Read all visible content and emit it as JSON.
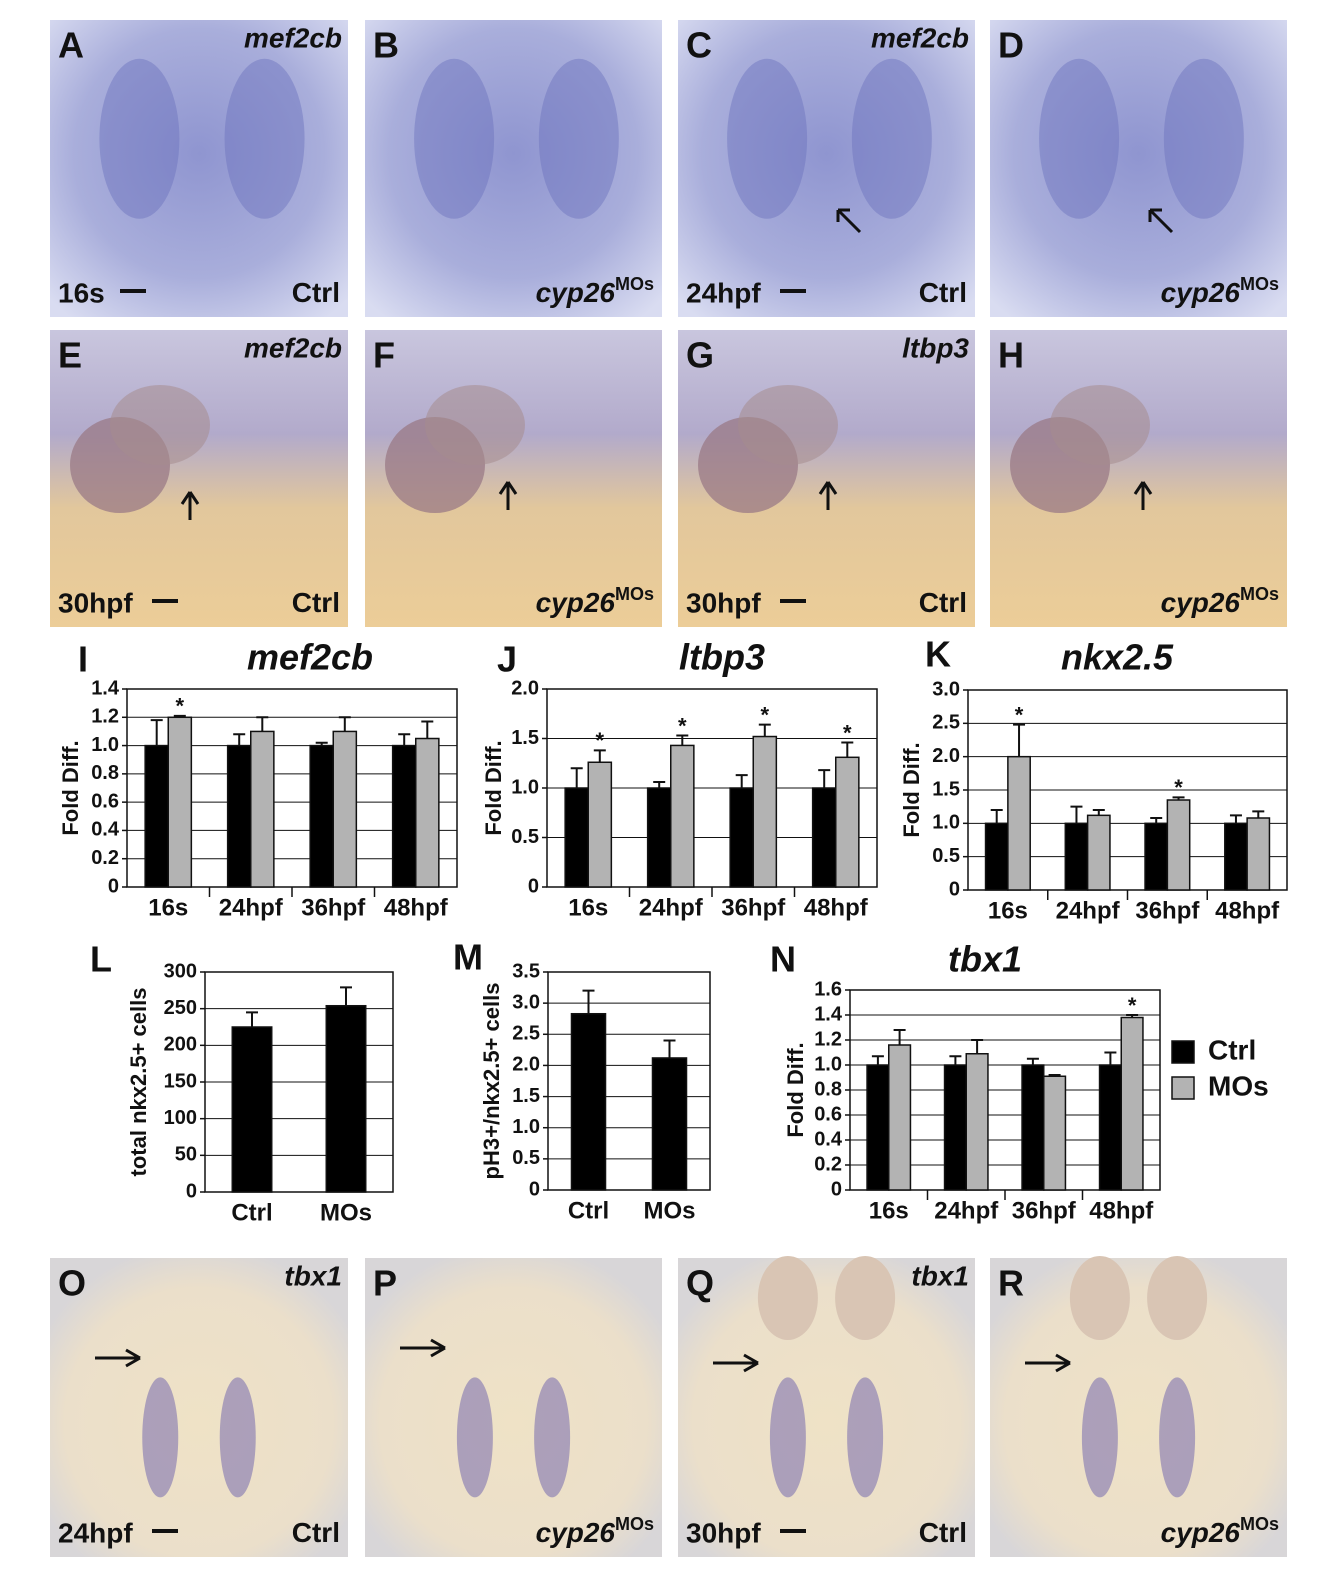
{
  "image_panels": [
    {
      "label": "A",
      "gene": "mef2cb",
      "stage": "16s",
      "condition": "Ctrl"
    },
    {
      "label": "B",
      "condition": "cyp26",
      "condition_sup": "MOs"
    },
    {
      "label": "C",
      "gene": "mef2cb",
      "stage": "24hpf",
      "condition": "Ctrl"
    },
    {
      "label": "D",
      "condition": "cyp26",
      "condition_sup": "MOs"
    },
    {
      "label": "E",
      "gene": "mef2cb",
      "stage": "30hpf",
      "condition": "Ctrl"
    },
    {
      "label": "F",
      "condition": "cyp26",
      "condition_sup": "MOs"
    },
    {
      "label": "G",
      "gene": "ltbp3",
      "stage": "30hpf",
      "condition": "Ctrl"
    },
    {
      "label": "H",
      "condition": "cyp26",
      "condition_sup": "MOs"
    },
    {
      "label": "O",
      "gene": "tbx1",
      "stage": "24hpf",
      "condition": "Ctrl"
    },
    {
      "label": "P",
      "condition": "cyp26",
      "condition_sup": "MOs"
    },
    {
      "label": "Q",
      "gene": "tbx1",
      "stage": "30hpf",
      "condition": "Ctrl"
    },
    {
      "label": "R",
      "condition": "cyp26",
      "condition_sup": "MOs"
    }
  ],
  "chart_data": [
    {
      "type": "bar",
      "panel": "I",
      "title": "mef2cb",
      "y_label": "Fold Diff.",
      "categories": [
        "16s",
        "24hpf",
        "36hpf",
        "48hpf"
      ],
      "series": [
        {
          "name": "Ctrl",
          "color": "#000000",
          "values": [
            1.0,
            1.0,
            1.0,
            1.0
          ],
          "errors": [
            0.18,
            0.08,
            0.02,
            0.08
          ]
        },
        {
          "name": "MOs",
          "color": "#b3b3b3",
          "values": [
            1.2,
            1.1,
            1.1,
            1.05
          ],
          "errors": [
            0.01,
            0.1,
            0.1,
            0.12
          ],
          "annotations": [
            "*",
            null,
            null,
            null
          ]
        }
      ],
      "ylim": [
        0,
        1.4
      ],
      "yticks": [
        0,
        0.2,
        0.4,
        0.6,
        0.8,
        {
          "value": 1,
          "label": "1.0"
        },
        1.2,
        1.4
      ],
      "grid": true
    },
    {
      "type": "bar",
      "panel": "J",
      "title": "ltbp3",
      "y_label": "Fold Diff.",
      "categories": [
        "16s",
        "24hpf",
        "36hpf",
        "48hpf"
      ],
      "series": [
        {
          "name": "Ctrl",
          "color": "#000000",
          "values": [
            1.0,
            1.0,
            1.0,
            1.0
          ],
          "errors": [
            0.2,
            0.06,
            0.13,
            0.18
          ]
        },
        {
          "name": "MOs",
          "color": "#b3b3b3",
          "values": [
            1.26,
            1.43,
            1.52,
            1.31
          ],
          "errors": [
            0.12,
            0.1,
            0.12,
            0.15
          ],
          "annotations": [
            "*",
            "*",
            "*",
            "*"
          ]
        }
      ],
      "ylim": [
        0,
        2
      ],
      "yticks": [
        0,
        0.5,
        {
          "value": 1,
          "label": "1.0"
        },
        1.5,
        {
          "value": 2,
          "label": "2.0"
        }
      ],
      "grid": true
    },
    {
      "type": "bar",
      "panel": "K",
      "title": "nkx2.5",
      "y_label": "Fold Diff.",
      "categories": [
        "16s",
        "24hpf",
        "36hpf",
        "48hpf"
      ],
      "series": [
        {
          "name": "Ctrl",
          "color": "#000000",
          "values": [
            1.0,
            1.0,
            1.0,
            1.0
          ],
          "errors": [
            0.2,
            0.25,
            0.08,
            0.12
          ]
        },
        {
          "name": "MOs",
          "color": "#b3b3b3",
          "values": [
            2.0,
            1.12,
            1.35,
            1.08
          ],
          "errors": [
            0.48,
            0.08,
            0.04,
            0.1
          ],
          "annotations": [
            "*",
            null,
            "*",
            null
          ]
        }
      ],
      "ylim": [
        0,
        3
      ],
      "yticks": [
        0,
        0.5,
        {
          "value": 1,
          "label": "1.0"
        },
        1.5,
        {
          "value": 2,
          "label": "2.0"
        },
        2.5,
        {
          "value": 3,
          "label": "3.0"
        }
      ],
      "grid": true
    },
    {
      "type": "bar",
      "panel": "L",
      "y_label": "total nkx2.5+ cells",
      "categories": [
        "Ctrl",
        "MOs"
      ],
      "color": "#000000",
      "values": [
        225,
        254
      ],
      "errors": [
        20,
        25
      ],
      "ylim": [
        0,
        300
      ],
      "yticks": [
        0,
        50,
        100,
        150,
        200,
        250,
        300
      ],
      "grid": true
    },
    {
      "type": "bar",
      "panel": "M",
      "y_label": "pH3+/nkx2.5+ cells",
      "categories": [
        "Ctrl",
        "MOs"
      ],
      "color": "#000000",
      "values": [
        2.83,
        2.12
      ],
      "errors": [
        0.37,
        0.28
      ],
      "ylim": [
        0,
        3.5
      ],
      "yticks": [
        0,
        0.5,
        {
          "value": 1,
          "label": "1.0"
        },
        1.5,
        {
          "value": 2,
          "label": "2.0"
        },
        2.5,
        {
          "value": 3,
          "label": "3.0"
        },
        3.5
      ],
      "grid": true
    },
    {
      "type": "bar",
      "panel": "N",
      "title": "tbx1",
      "y_label": "Fold Diff.",
      "categories": [
        "16s",
        "24hpf",
        "36hpf",
        "48hpf"
      ],
      "series": [
        {
          "name": "Ctrl",
          "color": "#000000",
          "values": [
            1.0,
            1.0,
            1.0,
            1.0
          ],
          "errors": [
            0.07,
            0.07,
            0.05,
            0.1
          ]
        },
        {
          "name": "MOs",
          "color": "#b3b3b3",
          "values": [
            1.16,
            1.09,
            0.91,
            1.38
          ],
          "errors": [
            0.12,
            0.11,
            0.01,
            0.02
          ],
          "annotations": [
            null,
            null,
            null,
            "*"
          ]
        }
      ],
      "ylim": [
        0,
        1.6
      ],
      "yticks": [
        0,
        0.2,
        0.4,
        0.6,
        0.8,
        {
          "value": 1,
          "label": "1.0"
        },
        1.2,
        1.4,
        1.6
      ],
      "grid": true,
      "legend": "right"
    }
  ]
}
